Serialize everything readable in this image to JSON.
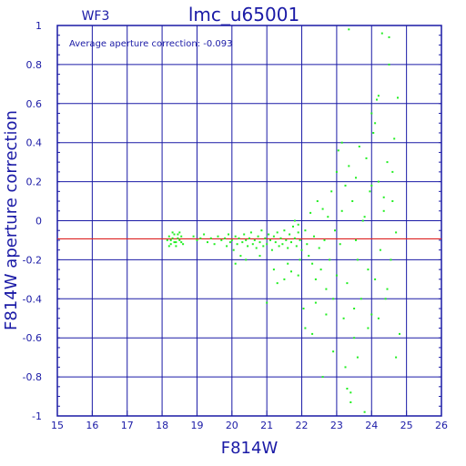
{
  "header": {
    "chip": "WF3",
    "title": "lmc_u65001"
  },
  "annotation": "Average aperture correction: -0.093",
  "colors": {
    "axis": "#1a1aa6",
    "grid": "#1a1aa6",
    "points": "#22ee22",
    "mean_line": "#dd2222"
  },
  "chart_data": {
    "type": "scatter",
    "title": "lmc_u65001",
    "xlabel": "F814W",
    "ylabel": "F814W aperture correction",
    "xlim": [
      15,
      26
    ],
    "ylim": [
      -1,
      1
    ],
    "x_ticks": [
      15,
      16,
      17,
      18,
      19,
      20,
      21,
      22,
      23,
      24,
      25,
      26
    ],
    "y_ticks": [
      -1,
      -0.8,
      -0.6,
      -0.4,
      -0.2,
      0,
      0.2,
      0.4,
      0.6,
      0.8,
      1
    ],
    "x_tick_labels": [
      "15",
      "16",
      "17",
      "18",
      "19",
      "20",
      "21",
      "22",
      "23",
      "24",
      "25",
      "26"
    ],
    "y_tick_labels": [
      "-1",
      "-0.8",
      "-0.6",
      "-0.4",
      "-0.2",
      "0",
      "0.2",
      "0.4",
      "0.6",
      "0.8",
      "1"
    ],
    "grid": true,
    "reference_line": {
      "y": -0.093
    },
    "series": [
      {
        "points": [
          [
            18.15,
            -0.1
          ],
          [
            18.2,
            -0.08
          ],
          [
            18.25,
            -0.12
          ],
          [
            18.3,
            -0.09
          ],
          [
            18.35,
            -0.07
          ],
          [
            18.4,
            -0.11
          ],
          [
            18.45,
            -0.09
          ],
          [
            18.5,
            -0.1
          ],
          [
            18.55,
            -0.08
          ],
          [
            18.6,
            -0.12
          ],
          [
            18.2,
            -0.13
          ],
          [
            18.3,
            -0.06
          ],
          [
            18.4,
            -0.13
          ],
          [
            18.5,
            -0.06
          ],
          [
            18.25,
            -0.1
          ],
          [
            18.35,
            -0.11
          ],
          [
            18.45,
            -0.07
          ],
          [
            18.55,
            -0.11
          ],
          [
            18.9,
            -0.08
          ],
          [
            19.0,
            -0.1
          ],
          [
            19.1,
            -0.09
          ],
          [
            19.2,
            -0.07
          ],
          [
            19.3,
            -0.11
          ],
          [
            19.4,
            -0.09
          ],
          [
            19.5,
            -0.12
          ],
          [
            19.6,
            -0.08
          ],
          [
            19.7,
            -0.1
          ],
          [
            19.8,
            -0.09
          ],
          [
            19.85,
            -0.13
          ],
          [
            19.9,
            -0.07
          ],
          [
            19.95,
            -0.11
          ],
          [
            20.0,
            -0.1
          ],
          [
            20.05,
            -0.15
          ],
          [
            20.1,
            -0.08
          ],
          [
            20.15,
            -0.12
          ],
          [
            20.2,
            -0.09
          ],
          [
            20.25,
            -0.18
          ],
          [
            20.3,
            -0.11
          ],
          [
            20.35,
            -0.07
          ],
          [
            20.4,
            -0.1
          ],
          [
            20.45,
            -0.13
          ],
          [
            20.5,
            -0.09
          ],
          [
            20.55,
            -0.06
          ],
          [
            20.6,
            -0.12
          ],
          [
            20.65,
            -0.1
          ],
          [
            20.7,
            -0.14
          ],
          [
            20.75,
            -0.08
          ],
          [
            20.8,
            -0.11
          ],
          [
            20.85,
            -0.05
          ],
          [
            20.9,
            -0.13
          ],
          [
            20.95,
            -0.09
          ],
          [
            21.0,
            -0.12
          ],
          [
            21.05,
            -0.07
          ],
          [
            21.1,
            -0.1
          ],
          [
            21.15,
            -0.15
          ],
          [
            21.2,
            -0.08
          ],
          [
            21.25,
            -0.11
          ],
          [
            21.3,
            -0.06
          ],
          [
            21.35,
            -0.13
          ],
          [
            21.4,
            -0.09
          ],
          [
            21.45,
            -0.12
          ],
          [
            21.5,
            -0.05
          ],
          [
            21.55,
            -0.1
          ],
          [
            21.6,
            -0.14
          ],
          [
            21.65,
            -0.07
          ],
          [
            21.7,
            -0.11
          ],
          [
            21.75,
            -0.03
          ],
          [
            21.8,
            -0.09
          ],
          [
            21.85,
            -0.13
          ],
          [
            21.9,
            -0.06
          ],
          [
            21.95,
            -0.1
          ],
          [
            20.1,
            -0.22
          ],
          [
            20.4,
            -0.2
          ],
          [
            20.8,
            -0.18
          ],
          [
            21.0,
            -0.42
          ],
          [
            21.2,
            -0.25
          ],
          [
            21.3,
            -0.32
          ],
          [
            21.5,
            -0.3
          ],
          [
            21.6,
            -0.22
          ],
          [
            21.7,
            -0.26
          ],
          [
            21.9,
            -0.28
          ],
          [
            21.95,
            -0.2
          ],
          [
            21.9,
            -0.02
          ],
          [
            21.8,
            0.0
          ],
          [
            22.0,
            -0.15
          ],
          [
            22.05,
            -0.45
          ],
          [
            22.1,
            -0.05
          ],
          [
            22.15,
            -0.12
          ],
          [
            22.2,
            -0.18
          ],
          [
            22.25,
            0.04
          ],
          [
            22.3,
            -0.22
          ],
          [
            22.35,
            -0.08
          ],
          [
            22.4,
            -0.3
          ],
          [
            22.45,
            0.1
          ],
          [
            22.5,
            -0.14
          ],
          [
            22.55,
            -0.25
          ],
          [
            22.6,
            0.06
          ],
          [
            22.65,
            -0.1
          ],
          [
            22.7,
            -0.35
          ],
          [
            22.75,
            0.02
          ],
          [
            22.8,
            -0.2
          ],
          [
            22.85,
            0.15
          ],
          [
            22.9,
            -0.4
          ],
          [
            22.95,
            -0.05
          ],
          [
            23.0,
            0.25
          ],
          [
            23.0,
            -0.28
          ],
          [
            22.9,
            -0.67
          ],
          [
            22.3,
            -0.58
          ],
          [
            22.1,
            -0.55
          ],
          [
            22.6,
            -0.8
          ],
          [
            22.4,
            -0.42
          ],
          [
            22.7,
            -0.48
          ],
          [
            23.05,
            0.36
          ],
          [
            23.1,
            -0.12
          ],
          [
            23.15,
            0.05
          ],
          [
            23.2,
            -0.5
          ],
          [
            23.25,
            0.18
          ],
          [
            23.3,
            -0.32
          ],
          [
            23.35,
            0.28
          ],
          [
            23.4,
            -0.88
          ],
          [
            23.45,
            0.1
          ],
          [
            23.5,
            -0.6
          ],
          [
            23.55,
            0.22
          ],
          [
            23.6,
            -0.2
          ],
          [
            23.65,
            0.38
          ],
          [
            23.7,
            -0.4
          ],
          [
            23.75,
            0.0
          ],
          [
            23.8,
            -0.98
          ],
          [
            23.85,
            0.32
          ],
          [
            23.9,
            -0.25
          ],
          [
            23.95,
            0.15
          ],
          [
            24.0,
            -0.48
          ],
          [
            24.0,
            0.55
          ],
          [
            23.3,
            -0.86
          ],
          [
            23.4,
            -0.93
          ],
          [
            23.35,
            0.98
          ],
          [
            23.15,
            0.4
          ],
          [
            23.25,
            -0.75
          ],
          [
            23.5,
            -0.45
          ],
          [
            23.55,
            -0.1
          ],
          [
            23.6,
            -0.7
          ],
          [
            23.8,
            0.02
          ],
          [
            23.9,
            -0.55
          ],
          [
            24.05,
            0.45
          ],
          [
            24.1,
            -0.3
          ],
          [
            24.15,
            0.62
          ],
          [
            24.2,
            0.2
          ],
          [
            24.25,
            -0.15
          ],
          [
            24.3,
            0.96
          ],
          [
            24.35,
            0.05
          ],
          [
            24.4,
            -0.4
          ],
          [
            24.45,
            0.3
          ],
          [
            24.5,
            0.8
          ],
          [
            24.55,
            -0.2
          ],
          [
            24.6,
            0.1
          ],
          [
            24.65,
            0.42
          ],
          [
            24.7,
            -0.7
          ],
          [
            24.75,
            0.63
          ],
          [
            24.8,
            -0.58
          ],
          [
            24.5,
            0.94
          ],
          [
            24.7,
            -0.06
          ],
          [
            24.1,
            0.5
          ],
          [
            24.2,
            -0.5
          ],
          [
            24.0,
            0.18
          ],
          [
            24.35,
            0.12
          ],
          [
            24.45,
            -0.35
          ],
          [
            24.6,
            0.25
          ],
          [
            24.2,
            0.64
          ]
        ]
      }
    ]
  }
}
